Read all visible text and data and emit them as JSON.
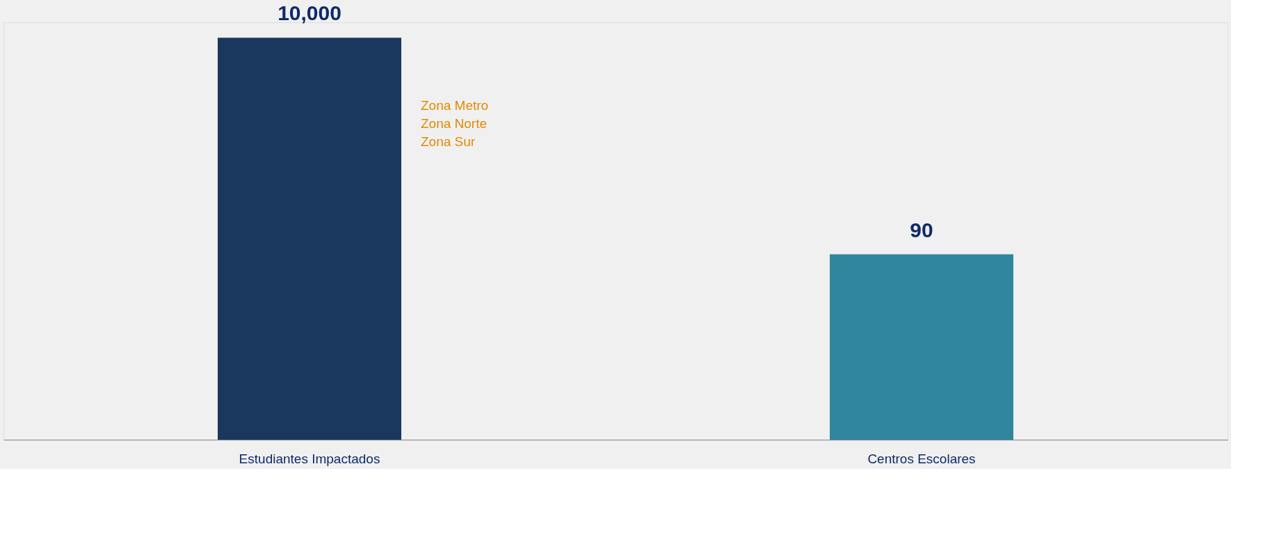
{
  "chart_data": {
    "type": "bar",
    "categories": [
      "Estudiantes Impactados",
      "Centros Escolares"
    ],
    "values": [
      10000,
      90
    ],
    "colors": [
      "#1a385e",
      "#31869f"
    ],
    "value_labels": [
      "10,000",
      "90"
    ],
    "log": true,
    "ylim": [
      1.6,
      14000
    ],
    "tick_labels": "x",
    "grid": false,
    "legend": false,
    "annotations": [
      "Zona Metro",
      "Zona Norte",
      "Zona Sur"
    ]
  }
}
